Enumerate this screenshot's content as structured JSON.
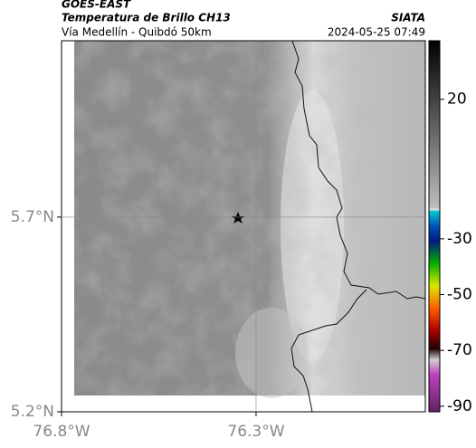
{
  "header": {
    "title": "GOES-EAST",
    "subtitle": "Temperatura de Brillo CH13",
    "location": "Vía Medellín - Quibdó 50km",
    "source": "SIATA",
    "datetime": "2024-05-25 07:49"
  },
  "map": {
    "xlim": [
      -76.8,
      -75.865
    ],
    "ylim": [
      5.2,
      6.153
    ],
    "xticks": [
      {
        "value": -76.8,
        "label": "76.8°W"
      },
      {
        "value": -76.3,
        "label": "76.3°W"
      }
    ],
    "yticks": [
      {
        "value": 5.2,
        "label": "5.2°N"
      },
      {
        "value": 5.7,
        "label": "5.7°N"
      }
    ],
    "grid": true
  },
  "colorbar": {
    "clim": [
      -92,
      41
    ],
    "ticks": [
      20,
      -30,
      -50,
      -70,
      -90
    ]
  }
}
